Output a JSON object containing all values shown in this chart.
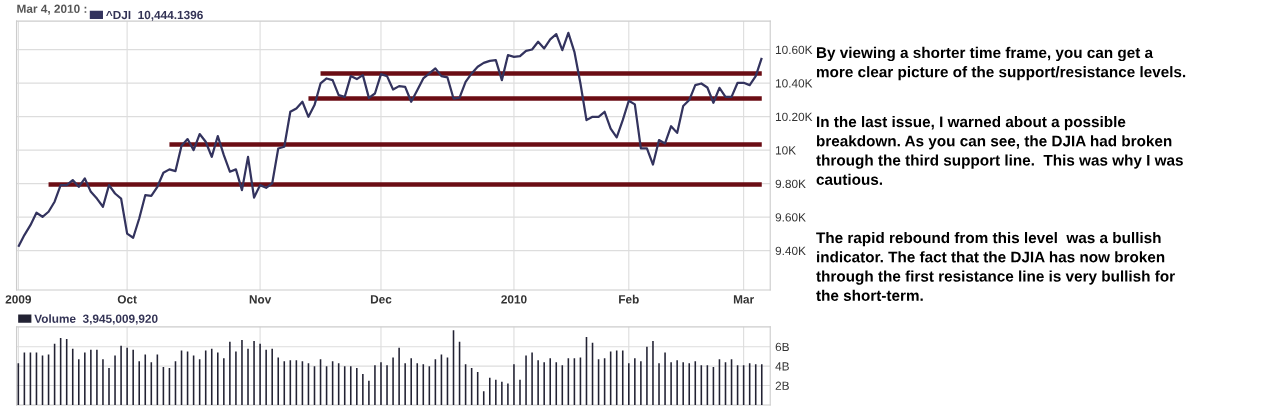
{
  "chart_data": [
    {
      "type": "line",
      "title": "Mar 4, 2010 :",
      "categories": [
        "2009",
        null,
        null,
        null,
        null,
        null,
        null,
        null,
        null,
        null,
        null,
        null,
        null,
        null,
        null,
        null,
        null,
        null,
        "Oct",
        null,
        null,
        null,
        null,
        null,
        null,
        null,
        null,
        null,
        null,
        null,
        null,
        null,
        null,
        null,
        null,
        null,
        null,
        null,
        null,
        null,
        "Nov",
        null,
        null,
        null,
        null,
        null,
        null,
        null,
        null,
        null,
        null,
        null,
        null,
        null,
        null,
        null,
        null,
        null,
        null,
        null,
        "Dec",
        null,
        null,
        null,
        null,
        null,
        null,
        null,
        null,
        null,
        null,
        null,
        null,
        null,
        null,
        null,
        null,
        null,
        null,
        null,
        null,
        null,
        "2010",
        null,
        null,
        null,
        null,
        null,
        null,
        null,
        null,
        null,
        null,
        null,
        null,
        null,
        null,
        null,
        null,
        null,
        null,
        "Feb",
        null,
        null,
        null,
        null,
        null,
        null,
        null,
        null,
        null,
        null,
        null,
        null,
        null,
        null,
        null,
        null,
        null,
        null,
        "Mar",
        null,
        null,
        null
      ],
      "series": [
        {
          "name": "^DJI  10,444.1396",
          "color": "#33335e",
          "values": [
            9423,
            9493,
            9552,
            9626,
            9602,
            9632,
            9692,
            9791,
            9791,
            9821,
            9781,
            9831,
            9751,
            9711,
            9662,
            9791,
            9741,
            9711,
            9502,
            9477,
            9592,
            9731,
            9727,
            9781,
            9865,
            9885,
            9875,
            10026,
            10066,
            10000,
            10096,
            10050,
            9960,
            10084,
            9970,
            9871,
            9885,
            9761,
            9960,
            9717,
            9791,
            9775,
            9801,
            10010,
            10020,
            10229,
            10249,
            10289,
            10199,
            10269,
            10398,
            10428,
            10418,
            10328,
            10318,
            10442,
            10424,
            10448,
            10312,
            10338,
            10454,
            10442,
            10362,
            10382,
            10378,
            10289,
            10358,
            10428,
            10458,
            10488,
            10442,
            10434,
            10308,
            10314,
            10408,
            10458,
            10498,
            10521,
            10533,
            10537,
            10418,
            10567,
            10557,
            10561,
            10593,
            10601,
            10647,
            10607,
            10661,
            10693,
            10597,
            10700,
            10587,
            10398,
            10179,
            10199,
            10199,
            10229,
            10129,
            10076,
            10179,
            10295,
            10273,
            10010,
            10010,
            9914,
            10060,
            10040,
            10143,
            10103,
            10263,
            10299,
            10388,
            10398,
            10374,
            10283,
            10372,
            10318,
            10318,
            10402,
            10402,
            10388,
            10442,
            10551
          ]
        },
        {
          "color": "#6b0d14",
          "values": [
            null,
            null,
            null,
            null,
            null,
            9795,
            9795,
            9795,
            9795,
            9795,
            9795,
            9795,
            9795,
            9795,
            9795,
            9795,
            9795,
            9795,
            9795,
            9795,
            9795,
            9795,
            9795,
            9795,
            9795,
            9795,
            9795,
            9795,
            9795,
            9795,
            9795,
            9795,
            9795,
            9795,
            9795,
            9795,
            9795,
            9795,
            9795,
            9795,
            9795,
            9795,
            9795,
            9795,
            9795,
            9795,
            9795,
            9795,
            9795,
            9795,
            9795,
            9795,
            9795,
            9795,
            9795,
            9795,
            9795,
            9795,
            9795,
            9795,
            9795,
            9795,
            9795,
            9795,
            9795,
            9795,
            9795,
            9795,
            9795,
            9795,
            9795,
            9795,
            9795,
            9795,
            9795,
            9795,
            9795,
            9795,
            9795,
            9795,
            9795,
            9795,
            9795,
            9795,
            9795,
            9795,
            9795,
            9795,
            9795,
            9795,
            9795,
            9795,
            9795,
            9795,
            9795,
            9795,
            9795,
            9795,
            9795,
            9795,
            9795,
            9795,
            9795,
            9795,
            9795,
            9795,
            9795,
            9795,
            9795,
            9795,
            9795,
            9795,
            9795,
            9795,
            9795,
            9795,
            9795,
            9795,
            9795,
            9795,
            9795,
            9795,
            9795,
            9795
          ]
        },
        {
          "color": "#6b0d14",
          "values": [
            null,
            null,
            null,
            null,
            null,
            null,
            null,
            null,
            null,
            null,
            null,
            null,
            null,
            null,
            null,
            null,
            null,
            null,
            null,
            null,
            null,
            null,
            null,
            null,
            null,
            10034,
            10034,
            10034,
            10034,
            10034,
            10034,
            10034,
            10034,
            10034,
            10034,
            10034,
            10034,
            10034,
            10034,
            10034,
            10034,
            10034,
            10034,
            10034,
            10034,
            10034,
            10034,
            10034,
            10034,
            10034,
            10034,
            10034,
            10034,
            10034,
            10034,
            10034,
            10034,
            10034,
            10034,
            10034,
            10034,
            10034,
            10034,
            10034,
            10034,
            10034,
            10034,
            10034,
            10034,
            10034,
            10034,
            10034,
            10034,
            10034,
            10034,
            10034,
            10034,
            10034,
            10034,
            10034,
            10034,
            10034,
            10034,
            10034,
            10034,
            10034,
            10034,
            10034,
            10034,
            10034,
            10034,
            10034,
            10034,
            10034,
            10034,
            10034,
            10034,
            10034,
            10034,
            10034,
            10034,
            10034,
            10034,
            10034,
            10034,
            10034,
            10034,
            10034,
            10034,
            10034,
            10034,
            10034,
            10034,
            10034,
            10034,
            10034,
            10034,
            10034,
            10034,
            10034,
            10034,
            10034,
            10034,
            10034
          ]
        },
        {
          "color": "#6b0d14",
          "values": [
            null,
            null,
            null,
            null,
            null,
            null,
            null,
            null,
            null,
            null,
            null,
            null,
            null,
            null,
            null,
            null,
            null,
            null,
            null,
            null,
            null,
            null,
            null,
            null,
            null,
            null,
            null,
            null,
            null,
            null,
            null,
            null,
            null,
            null,
            null,
            null,
            null,
            null,
            null,
            null,
            null,
            null,
            null,
            null,
            null,
            null,
            null,
            null,
            10308,
            10308,
            10308,
            10308,
            10308,
            10308,
            10308,
            10308,
            10308,
            10308,
            10308,
            10308,
            10308,
            10308,
            10308,
            10308,
            10308,
            10308,
            10308,
            10308,
            10308,
            10308,
            10308,
            10308,
            10308,
            10308,
            10308,
            10308,
            10308,
            10308,
            10308,
            10308,
            10308,
            10308,
            10308,
            10308,
            10308,
            10308,
            10308,
            10308,
            10308,
            10308,
            10308,
            10308,
            10308,
            10308,
            10308,
            10308,
            10308,
            10308,
            10308,
            10308,
            10308,
            10308,
            10308,
            10308,
            10308,
            10308,
            10308,
            10308,
            10308,
            10308,
            10308,
            10308,
            10308,
            10308,
            10308,
            10308,
            10308,
            10308,
            10308,
            10308,
            10308,
            10308,
            10308,
            10308
          ]
        },
        {
          "color": "#6b0d14",
          "values": [
            null,
            null,
            null,
            null,
            null,
            null,
            null,
            null,
            null,
            null,
            null,
            null,
            null,
            null,
            null,
            null,
            null,
            null,
            null,
            null,
            null,
            null,
            null,
            null,
            null,
            null,
            null,
            null,
            null,
            null,
            null,
            null,
            null,
            null,
            null,
            null,
            null,
            null,
            null,
            null,
            null,
            null,
            null,
            null,
            null,
            null,
            null,
            null,
            null,
            null,
            10458,
            10458,
            10458,
            10458,
            10458,
            10458,
            10458,
            10458,
            10458,
            10458,
            10458,
            10458,
            10458,
            10458,
            10458,
            10458,
            10458,
            10458,
            10458,
            10458,
            10458,
            10458,
            10458,
            10458,
            10458,
            10458,
            10458,
            10458,
            10458,
            10458,
            10458,
            10458,
            10458,
            10458,
            10458,
            10458,
            10458,
            10458,
            10458,
            10458,
            10458,
            10458,
            10458,
            10458,
            10458,
            10458,
            10458,
            10458,
            10458,
            10458,
            10458,
            10458,
            10458,
            10458,
            10458,
            10458,
            10458,
            10458,
            10458,
            10458,
            10458,
            10458,
            10458,
            10458,
            10458,
            10458,
            10458,
            10458,
            10458,
            10458,
            10458,
            10458,
            10458,
            10458
          ]
        }
      ],
      "ylim": [
        9165,
        10770
      ],
      "yticks": [
        {
          "value": 9400,
          "label": "9.40K"
        },
        {
          "value": 9600,
          "label": "9.60K"
        },
        {
          "value": 9800,
          "label": "9.80K"
        },
        {
          "value": 10000,
          "label": "10K"
        },
        {
          "value": 10200,
          "label": "10.20K"
        },
        {
          "value": 10400,
          "label": "10.40K"
        },
        {
          "value": 10600,
          "label": "10.60K"
        }
      ],
      "grid": true,
      "legend": "top left",
      "annotations": [
        "By viewing a shorter time frame, you can get a\nmore clear picture of the support/resistance levels.",
        "In the last issue, I warned about a possible\nbreakdown. As you can see, the DJIA had broken\nthrough the third support line.  This was why I was\ncautious.",
        "The rapid rebound from this level  was a bullish\nindicator. The fact that the DJIA has now broken\nthrough the first resistance line is very bullish for\nthe short-term."
      ]
    },
    {
      "type": "bar",
      "categories": [
        null,
        null,
        null,
        null,
        null,
        null,
        null,
        null,
        null,
        null,
        null,
        null,
        null,
        null,
        null,
        null,
        null,
        null,
        null,
        null,
        null,
        null,
        null,
        null,
        null,
        null,
        null,
        null,
        null,
        null,
        null,
        null,
        null,
        null,
        null,
        null,
        null,
        null,
        null,
        null,
        null,
        null,
        null,
        null,
        null,
        null,
        null,
        null,
        null,
        null,
        null,
        null,
        null,
        null,
        null,
        null,
        null,
        null,
        null,
        null,
        null,
        null,
        null,
        null,
        null,
        null,
        null,
        null,
        null,
        null,
        null,
        null,
        null,
        null,
        null,
        null,
        null,
        null,
        null,
        null,
        null,
        null,
        null,
        null,
        null,
        null,
        null,
        null,
        null,
        null,
        null,
        null,
        null,
        null,
        null,
        null,
        null,
        null,
        null,
        null,
        null,
        null,
        null,
        null,
        null,
        null,
        null,
        null,
        null,
        null,
        null,
        null,
        null,
        null,
        null,
        null,
        null,
        null,
        null,
        null,
        null,
        null,
        null,
        null
      ],
      "series": [
        {
          "name": "Volume  3,945,009,920",
          "color": "#222233",
          "values": [
            4.3,
            5.4,
            5.4,
            5.4,
            5.1,
            5.2,
            6.3,
            6.9,
            6.8,
            5.8,
            4.7,
            5.4,
            5.7,
            5.7,
            4.7,
            3.8,
            5.1,
            6.1,
            5.9,
            5.7,
            4.5,
            5.2,
            4.4,
            5.2,
            3.9,
            3.8,
            4.5,
            5.6,
            5.5,
            5.1,
            4.7,
            5.6,
            5.8,
            5.4,
            4.8,
            6.5,
            5.5,
            6.7,
            5.8,
            6.6,
            6.3,
            5.7,
            5.8,
            4.9,
            4.5,
            4.6,
            4.6,
            4.5,
            4.3,
            4.0,
            4.7,
            4.0,
            4.5,
            4.3,
            4.0,
            4.0,
            3.8,
            3.2,
            2.5,
            4.1,
            4.4,
            4.1,
            4.9,
            5.9,
            4.3,
            4.8,
            4.3,
            4.2,
            4.0,
            4.7,
            5.2,
            4.9,
            7.7,
            6.5,
            4.2,
            3.8,
            3.4,
            1.4,
            2.8,
            2.6,
            2.4,
            2.2,
            4.2,
            2.6,
            5.1,
            5.4,
            4.6,
            4.4,
            4.8,
            4.4,
            4.1,
            4.8,
            4.8,
            4.9,
            7.0,
            6.4,
            4.7,
            4.8,
            5.5,
            5.6,
            5.6,
            4.3,
            4.8,
            4.5,
            6.0,
            6.6,
            4.3,
            5.4,
            4.4,
            4.6,
            4.4,
            4.3,
            4.5,
            4.1,
            4.1,
            3.9,
            4.7,
            4.4,
            4.7,
            4.1,
            4.1,
            4.3,
            4.2,
            4.2
          ]
        }
      ],
      "ylim": [
        0,
        8.05
      ],
      "yticks": [
        {
          "value": 2,
          "label": "2B"
        },
        {
          "value": 4,
          "label": "4B"
        },
        {
          "value": 6,
          "label": "6B"
        }
      ],
      "grid": true,
      "legend": "top left",
      "tick_labels": "y"
    }
  ]
}
